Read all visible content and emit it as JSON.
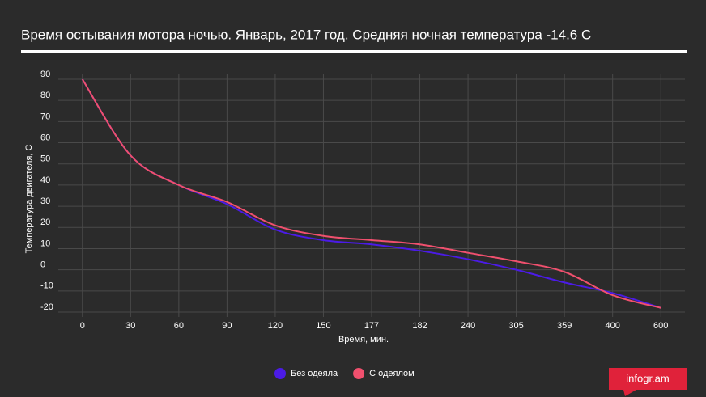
{
  "chart_data": {
    "type": "line",
    "title": "Время остывания мотора ночью. Январь, 2017 год. Средняя ночная температура -14.6 С",
    "x_label": "Время, мин.",
    "y_label": "Температура двигателя, С",
    "categories": [
      "0",
      "30",
      "60",
      "90",
      "120",
      "150",
      "177",
      "182",
      "240",
      "305",
      "359",
      "400",
      "600"
    ],
    "series": [
      {
        "name": "Без одеяла",
        "color": "#4b1be6",
        "values": [
          90,
          54,
          40,
          31,
          19,
          14,
          12,
          9,
          5,
          0,
          -6,
          -11,
          -18
        ]
      },
      {
        "name": "С одеялом",
        "color": "#f0506e",
        "values": [
          90,
          54,
          40,
          32,
          21,
          16,
          14,
          12,
          8,
          4,
          -1,
          -12,
          -18
        ]
      }
    ],
    "ylim": [
      -20,
      90
    ],
    "yticks": [
      90,
      80,
      70,
      60,
      50,
      40,
      30,
      20,
      10,
      0,
      -10,
      -20
    ],
    "grid": true,
    "legend": "bottom",
    "badge": "infogr.am"
  }
}
